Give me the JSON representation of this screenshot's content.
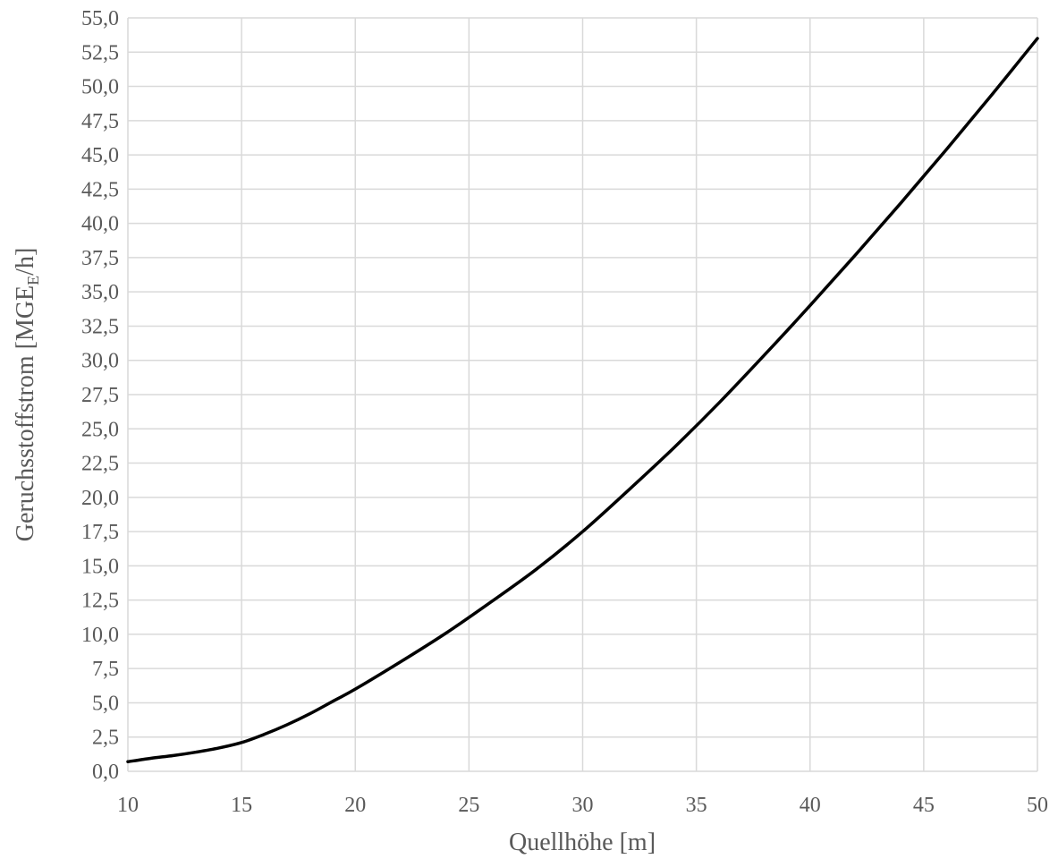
{
  "chart_data": {
    "type": "line",
    "title": "",
    "xlabel": "Quellhöhe [m]",
    "ylabel": {
      "main": "Geruchsstoffstrom [MGE",
      "subscript": "E",
      "suffix": "/h]"
    },
    "xlim": [
      10,
      50
    ],
    "ylim": [
      0,
      55
    ],
    "x_ticks": [
      "10",
      "15",
      "20",
      "25",
      "30",
      "35",
      "40",
      "45",
      "50"
    ],
    "y_ticks": [
      "0,0",
      "2,5",
      "5,0",
      "7,5",
      "10,0",
      "12,5",
      "15,0",
      "17,5",
      "20,0",
      "22,5",
      "25,0",
      "27,5",
      "30,0",
      "32,5",
      "35,0",
      "37,5",
      "40,0",
      "42,5",
      "45,0",
      "47,5",
      "50,0",
      "52,5",
      "55,0"
    ],
    "grid": true,
    "legend": false,
    "series": [
      {
        "color": "#000000",
        "x": [
          10,
          11,
          12,
          13,
          14,
          15,
          16,
          17,
          18,
          19,
          20,
          22,
          24,
          26,
          28,
          30,
          32,
          34,
          36,
          38,
          40,
          42,
          44,
          46,
          48,
          50
        ],
        "y": [
          0.7,
          0.95,
          1.15,
          1.4,
          1.7,
          2.1,
          2.7,
          3.4,
          4.2,
          5.1,
          6.0,
          8.0,
          10.1,
          12.4,
          14.8,
          17.5,
          20.5,
          23.6,
          26.9,
          30.4,
          34.0,
          37.7,
          41.5,
          45.4,
          49.4,
          53.5
        ]
      }
    ]
  }
}
